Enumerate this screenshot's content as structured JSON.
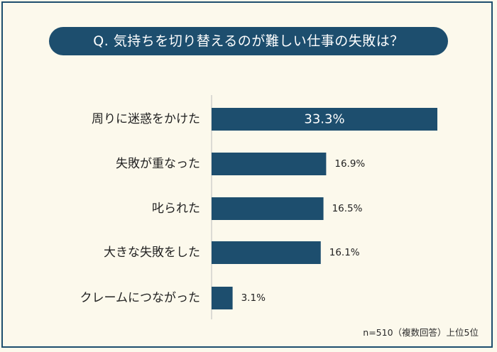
{
  "question": "Q. 気持ちを切り替えるのが難しい仕事の失敗は？",
  "note": "n=510（複数回答）上位5位",
  "colors": {
    "bar": "#1d4e6e",
    "axis": "#bdbdbd",
    "background": "#fcf9ec"
  },
  "chart_data": {
    "type": "bar",
    "orientation": "horizontal",
    "categories": [
      "周りに迷惑をかけた",
      "失敗が重なった",
      "叱られた",
      "大きな失敗をした",
      "クレームにつながった"
    ],
    "values": [
      33.3,
      16.9,
      16.5,
      16.1,
      3.1
    ],
    "labels": [
      "33.3%",
      "16.9%",
      "16.5%",
      "16.1%",
      "3.1%"
    ],
    "unit": "%",
    "xlim": [
      0,
      33.3
    ],
    "grid": false,
    "legend": false
  }
}
